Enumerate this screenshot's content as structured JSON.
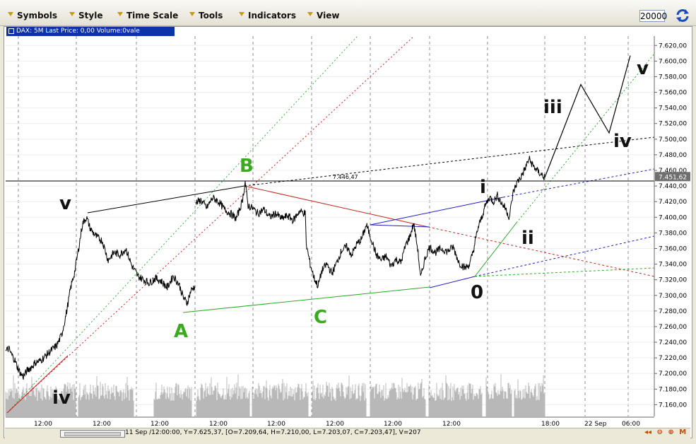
{
  "toolbar": {
    "menus": [
      "Symbols",
      "Style",
      "Time Scale",
      "Tools",
      "Indicators",
      "View"
    ],
    "points": "20000"
  },
  "info": {
    "label": "DAX: 5M Last Price: 0,00 Volume:0vale"
  },
  "status": {
    "text": "11 Sep /12:00:00, Y=7.625,37, [O=7.209,64, H=7.210,00, L=7.203,07, C=7.203,47], V=207"
  },
  "zoom_controls": [
    "◂◂",
    "⊖",
    "⊕",
    "M"
  ],
  "colors": {
    "wave_label_black": "#111111",
    "wave_label_green": "#3aaa1e",
    "price_line": "#000000",
    "volume": "#b8b8b8",
    "info_bar": "#0a34a8"
  },
  "chart_data": {
    "type": "line",
    "symbol": "DAX",
    "timeframe": "5M",
    "y_ticks": [
      "7.620,00",
      "7.600,00",
      "7.580,00",
      "7.560,00",
      "7.540,00",
      "7.520,00",
      "7.500,00",
      "7.480,00",
      "7.460,00",
      "7.440,00",
      "7.420,00",
      "7.400,00",
      "7.380,00",
      "7.360,00",
      "7.340,00",
      "7.320,00",
      "7.300,00",
      "7.280,00",
      "7.260,00",
      "7.240,00",
      "7.220,00",
      "7.200,00",
      "7.180,00",
      "7.160,00"
    ],
    "ylim": [
      7145,
      7632
    ],
    "x_ticks": [
      "12:00",
      "12:00",
      "12:00",
      "12:00",
      "12:00",
      "12:00",
      "12:00",
      "12:00",
      "18:00",
      "22 Sep",
      "06:00"
    ],
    "current_price": "7.451,62",
    "horizontal_line": {
      "value": 7446.47,
      "label": "7.446,47"
    },
    "price_series": [
      {
        "i": 0,
        "y": 7228
      },
      {
        "i": 3,
        "y": 7232
      },
      {
        "i": 6,
        "y": 7224
      },
      {
        "i": 9,
        "y": 7218
      },
      {
        "i": 12,
        "y": 7208
      },
      {
        "i": 15,
        "y": 7200
      },
      {
        "i": 18,
        "y": 7196
      },
      {
        "i": 22,
        "y": 7204
      },
      {
        "i": 26,
        "y": 7208
      },
      {
        "i": 30,
        "y": 7214
      },
      {
        "i": 35,
        "y": 7216
      },
      {
        "i": 40,
        "y": 7222
      },
      {
        "i": 45,
        "y": 7228
      },
      {
        "i": 52,
        "y": 7236
      },
      {
        "i": 57,
        "y": 7250
      },
      {
        "i": 62,
        "y": 7280
      },
      {
        "i": 66,
        "y": 7310
      },
      {
        "i": 70,
        "y": 7330
      },
      {
        "i": 74,
        "y": 7360
      },
      {
        "i": 78,
        "y": 7392
      },
      {
        "i": 82,
        "y": 7400
      },
      {
        "i": 86,
        "y": 7385
      },
      {
        "i": 92,
        "y": 7375
      },
      {
        "i": 98,
        "y": 7370
      },
      {
        "i": 104,
        "y": 7345
      },
      {
        "i": 110,
        "y": 7355
      },
      {
        "i": 116,
        "y": 7352
      },
      {
        "i": 122,
        "y": 7360
      },
      {
        "i": 128,
        "y": 7338
      },
      {
        "i": 134,
        "y": 7325
      },
      {
        "i": 140,
        "y": 7320
      },
      {
        "i": 146,
        "y": 7316
      },
      {
        "i": 152,
        "y": 7322
      },
      {
        "i": 158,
        "y": 7318
      },
      {
        "i": 164,
        "y": 7310
      },
      {
        "i": 170,
        "y": 7325
      },
      {
        "i": 176,
        "y": 7314
      },
      {
        "i": 180,
        "y": 7298
      },
      {
        "i": 184,
        "y": 7290
      },
      {
        "i": 188,
        "y": 7306
      },
      {
        "i": 192,
        "y": 7312
      },
      {
        "i": 193,
        "y": 7418
      },
      {
        "i": 198,
        "y": 7422
      },
      {
        "i": 204,
        "y": 7412
      },
      {
        "i": 210,
        "y": 7425
      },
      {
        "i": 216,
        "y": 7420
      },
      {
        "i": 222,
        "y": 7410
      },
      {
        "i": 228,
        "y": 7405
      },
      {
        "i": 234,
        "y": 7398
      },
      {
        "i": 240,
        "y": 7420
      },
      {
        "i": 243,
        "y": 7445
      },
      {
        "i": 246,
        "y": 7415
      },
      {
        "i": 250,
        "y": 7412
      },
      {
        "i": 256,
        "y": 7405
      },
      {
        "i": 262,
        "y": 7410
      },
      {
        "i": 268,
        "y": 7400
      },
      {
        "i": 274,
        "y": 7405
      },
      {
        "i": 280,
        "y": 7398
      },
      {
        "i": 286,
        "y": 7402
      },
      {
        "i": 292,
        "y": 7396
      },
      {
        "i": 298,
        "y": 7408
      },
      {
        "i": 304,
        "y": 7405
      },
      {
        "i": 305,
        "y": 7365
      },
      {
        "i": 309,
        "y": 7340
      },
      {
        "i": 313,
        "y": 7322
      },
      {
        "i": 317,
        "y": 7312
      },
      {
        "i": 321,
        "y": 7332
      },
      {
        "i": 326,
        "y": 7340
      },
      {
        "i": 331,
        "y": 7328
      },
      {
        "i": 336,
        "y": 7342
      },
      {
        "i": 341,
        "y": 7358
      },
      {
        "i": 346,
        "y": 7362
      },
      {
        "i": 351,
        "y": 7352
      },
      {
        "i": 356,
        "y": 7365
      },
      {
        "i": 361,
        "y": 7372
      },
      {
        "i": 366,
        "y": 7390
      },
      {
        "i": 371,
        "y": 7372
      },
      {
        "i": 376,
        "y": 7352
      },
      {
        "i": 381,
        "y": 7345
      },
      {
        "i": 386,
        "y": 7350
      },
      {
        "i": 391,
        "y": 7338
      },
      {
        "i": 396,
        "y": 7346
      },
      {
        "i": 401,
        "y": 7342
      },
      {
        "i": 406,
        "y": 7365
      },
      {
        "i": 410,
        "y": 7375
      },
      {
        "i": 414,
        "y": 7392
      },
      {
        "i": 418,
        "y": 7360
      },
      {
        "i": 421,
        "y": 7322
      },
      {
        "i": 425,
        "y": 7345
      },
      {
        "i": 430,
        "y": 7362
      },
      {
        "i": 436,
        "y": 7355
      },
      {
        "i": 442,
        "y": 7360
      },
      {
        "i": 448,
        "y": 7356
      },
      {
        "i": 454,
        "y": 7362
      },
      {
        "i": 460,
        "y": 7342
      },
      {
        "i": 466,
        "y": 7335
      },
      {
        "i": 471,
        "y": 7340
      },
      {
        "i": 475,
        "y": 7360
      },
      {
        "i": 479,
        "y": 7385
      },
      {
        "i": 483,
        "y": 7400
      },
      {
        "i": 487,
        "y": 7416
      },
      {
        "i": 491,
        "y": 7426
      },
      {
        "i": 495,
        "y": 7420
      },
      {
        "i": 499,
        "y": 7428
      },
      {
        "i": 503,
        "y": 7418
      },
      {
        "i": 507,
        "y": 7412
      },
      {
        "i": 511,
        "y": 7400
      },
      {
        "i": 515,
        "y": 7432
      },
      {
        "i": 519,
        "y": 7445
      },
      {
        "i": 523,
        "y": 7452
      },
      {
        "i": 527,
        "y": 7462
      },
      {
        "i": 531,
        "y": 7475
      },
      {
        "i": 535,
        "y": 7466
      },
      {
        "i": 539,
        "y": 7460
      },
      {
        "i": 543,
        "y": 7455
      },
      {
        "i": 547,
        "y": 7451
      }
    ],
    "wave_labels": [
      {
        "text": "v",
        "color": "black"
      },
      {
        "text": "iv",
        "color": "black"
      },
      {
        "text": "A",
        "color": "green"
      },
      {
        "text": "B",
        "color": "green"
      },
      {
        "text": "C",
        "color": "green"
      },
      {
        "text": "i",
        "color": "black"
      },
      {
        "text": "ii",
        "color": "black"
      },
      {
        "text": "0",
        "color": "black"
      },
      {
        "text": "iii",
        "color": "black"
      },
      {
        "text": "iv",
        "color": "black"
      },
      {
        "text": "v",
        "color": "black"
      }
    ],
    "projection": [
      {
        "t": "now",
        "y": 7451
      },
      {
        "t": "iii",
        "y": 7570
      },
      {
        "t": "iv",
        "y": 7508
      },
      {
        "t": "v",
        "y": 7607
      }
    ],
    "grid": true
  }
}
